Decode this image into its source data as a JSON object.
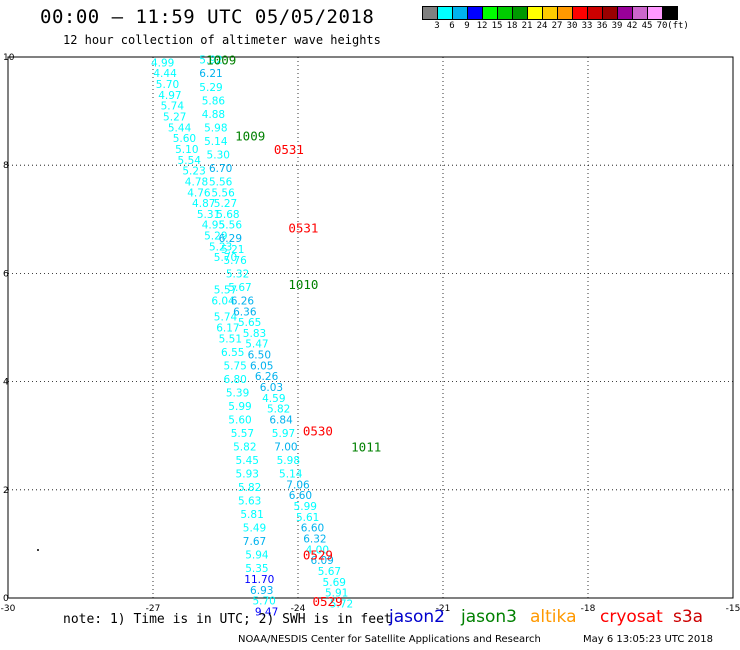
{
  "header": {
    "title": "00:00 – 11:59 UTC 05/05/2018",
    "subtitle": "12 hour collection of altimeter wave heights"
  },
  "colorbar": {
    "colors": [
      "#808080",
      "#00ffff",
      "#00b2ee",
      "#0000ff",
      "#00ff00",
      "#00cc00",
      "#009900",
      "#ffff00",
      "#ffcc00",
      "#ff9900",
      "#ff0000",
      "#cc0000",
      "#990000",
      "#990099",
      "#cc66cc",
      "#ff99ff",
      "#000000"
    ],
    "labels": [
      "3",
      "6",
      "9",
      "12",
      "15",
      "18",
      "21",
      "24",
      "27",
      "30",
      "33",
      "36",
      "39",
      "42",
      "45",
      "70"
    ],
    "unit": "(ft)"
  },
  "chart_data": {
    "type": "scatter",
    "title": "00:00 – 11:59 UTC 05/05/2018",
    "subtitle": "12 hour collection of altimeter wave heights",
    "xlim": [
      -30,
      -15
    ],
    "ylim": [
      0,
      10
    ],
    "x_ticks": [
      "-30",
      "-27",
      "-24",
      "-21",
      "-18",
      "-15"
    ],
    "y_ticks": [
      "0",
      "2",
      "4",
      "6",
      "8",
      "10"
    ],
    "grid": "dotted",
    "value_unit": "ft",
    "pass_labels": [
      {
        "text": "1009",
        "x": -25.9,
        "y": 9.95,
        "color": "#008000"
      },
      {
        "text": "1009",
        "x": -25.3,
        "y": 8.55,
        "color": "#008000"
      },
      {
        "text": "0531",
        "x": -24.5,
        "y": 8.3,
        "color": "#ff0000"
      },
      {
        "text": "0531",
        "x": -24.2,
        "y": 6.85,
        "color": "#ff0000"
      },
      {
        "text": "1010",
        "x": -24.2,
        "y": 5.8,
        "color": "#008000"
      },
      {
        "text": "0530",
        "x": -23.9,
        "y": 3.1,
        "color": "#ff0000"
      },
      {
        "text": "1011",
        "x": -22.9,
        "y": 2.8,
        "color": "#008000"
      },
      {
        "text": "0529",
        "x": -23.9,
        "y": 0.8,
        "color": "#ff0000"
      },
      {
        "text": "0529",
        "x": -23.7,
        "y": -0.06,
        "color": "#ff0000"
      }
    ],
    "series": [
      {
        "points": [
          {
            "x": -26.8,
            "y": 9.9,
            "v": "4.99",
            "c": "#00ffff"
          },
          {
            "x": -26.75,
            "y": 9.7,
            "v": "4.44",
            "c": "#00ffff"
          },
          {
            "x": -26.7,
            "y": 9.5,
            "v": "5.70",
            "c": "#00ffff"
          },
          {
            "x": -26.65,
            "y": 9.3,
            "v": "4.97",
            "c": "#00ffff"
          },
          {
            "x": -26.6,
            "y": 9.1,
            "v": "5.74",
            "c": "#00ffff"
          },
          {
            "x": -26.55,
            "y": 8.9,
            "v": "5.27",
            "c": "#00ffff"
          },
          {
            "x": -26.45,
            "y": 8.7,
            "v": "5.44",
            "c": "#00ffff"
          },
          {
            "x": -26.35,
            "y": 8.5,
            "v": "5.60",
            "c": "#00ffff"
          },
          {
            "x": -26.3,
            "y": 8.3,
            "v": "5.10",
            "c": "#00ffff"
          },
          {
            "x": -26.25,
            "y": 8.1,
            "v": "5.54",
            "c": "#00ffff"
          },
          {
            "x": -26.15,
            "y": 7.9,
            "v": "5.23",
            "c": "#00ffff"
          },
          {
            "x": -26.1,
            "y": 7.7,
            "v": "4.78",
            "c": "#00ffff"
          },
          {
            "x": -26.05,
            "y": 7.5,
            "v": "4.76",
            "c": "#00ffff"
          },
          {
            "x": -25.95,
            "y": 7.3,
            "v": "4.87",
            "c": "#00ffff"
          },
          {
            "x": -25.85,
            "y": 7.1,
            "v": "5.31",
            "c": "#00ffff"
          },
          {
            "x": -25.75,
            "y": 6.9,
            "v": "4.95",
            "c": "#00ffff"
          },
          {
            "x": -25.7,
            "y": 6.7,
            "v": "5.29",
            "c": "#00ffff"
          },
          {
            "x": -25.6,
            "y": 6.5,
            "v": "5.23",
            "c": "#00ffff"
          },
          {
            "x": -25.5,
            "y": 6.3,
            "v": "5.70",
            "c": "#00ffff"
          },
          {
            "x": -25.5,
            "y": 5.7,
            "v": "5.57",
            "c": "#00ffff"
          },
          {
            "x": -25.55,
            "y": 5.5,
            "v": "6.04",
            "c": "#00ffff"
          },
          {
            "x": -25.5,
            "y": 5.2,
            "v": "5.74",
            "c": "#00ffff"
          },
          {
            "x": -25.45,
            "y": 5.0,
            "v": "6.17",
            "c": "#00ffff"
          },
          {
            "x": -25.4,
            "y": 4.8,
            "v": "5.51",
            "c": "#00ffff"
          },
          {
            "x": -25.35,
            "y": 4.55,
            "v": "6.55",
            "c": "#00ffff"
          },
          {
            "x": -25.3,
            "y": 4.3,
            "v": "5.75",
            "c": "#00ffff"
          },
          {
            "x": -25.3,
            "y": 4.05,
            "v": "6.80",
            "c": "#00ffff"
          },
          {
            "x": -25.25,
            "y": 3.8,
            "v": "5.39",
            "c": "#00ffff"
          },
          {
            "x": -25.2,
            "y": 3.55,
            "v": "5.99",
            "c": "#00ffff"
          },
          {
            "x": -25.2,
            "y": 3.3,
            "v": "5.60",
            "c": "#00ffff"
          },
          {
            "x": -25.15,
            "y": 3.05,
            "v": "5.57",
            "c": "#00ffff"
          },
          {
            "x": -25.1,
            "y": 2.8,
            "v": "5.82",
            "c": "#00ffff"
          },
          {
            "x": -25.05,
            "y": 2.55,
            "v": "5.45",
            "c": "#00ffff"
          },
          {
            "x": -25.05,
            "y": 2.3,
            "v": "5.93",
            "c": "#00ffff"
          },
          {
            "x": -25.0,
            "y": 2.05,
            "v": "5.82",
            "c": "#00ffff"
          },
          {
            "x": -25.0,
            "y": 1.8,
            "v": "5.63",
            "c": "#00ffff"
          },
          {
            "x": -24.95,
            "y": 1.55,
            "v": "5.81",
            "c": "#00ffff"
          },
          {
            "x": -24.9,
            "y": 1.3,
            "v": "5.49",
            "c": "#00ffff"
          },
          {
            "x": -24.9,
            "y": 1.05,
            "v": "7.67",
            "c": "#00b2ee"
          },
          {
            "x": -24.85,
            "y": 0.8,
            "v": "5.94",
            "c": "#00ffff"
          },
          {
            "x": -24.85,
            "y": 0.55,
            "v": "5.35",
            "c": "#00ffff"
          },
          {
            "x": -24.8,
            "y": 0.35,
            "v": "11.70",
            "c": "#0000ff"
          },
          {
            "x": -24.75,
            "y": 0.15,
            "v": "6.93",
            "c": "#00b2ee"
          },
          {
            "x": -24.7,
            "y": -0.05,
            "v": "5.70",
            "c": "#00ffff"
          },
          {
            "x": -24.65,
            "y": -0.25,
            "v": "9.47",
            "c": "#0000ff"
          }
        ]
      },
      {
        "points": [
          {
            "x": -25.8,
            "y": 9.95,
            "v": "5.92",
            "c": "#00ffff"
          },
          {
            "x": -25.8,
            "y": 9.7,
            "v": "6.21",
            "c": "#00b2ee"
          },
          {
            "x": -25.8,
            "y": 9.45,
            "v": "5.29",
            "c": "#00ffff"
          },
          {
            "x": -25.75,
            "y": 9.2,
            "v": "5.86",
            "c": "#00ffff"
          },
          {
            "x": -25.75,
            "y": 8.95,
            "v": "4.88",
            "c": "#00ffff"
          },
          {
            "x": -25.7,
            "y": 8.7,
            "v": "5.98",
            "c": "#00ffff"
          },
          {
            "x": -25.7,
            "y": 8.45,
            "v": "5.14",
            "c": "#00ffff"
          },
          {
            "x": -25.65,
            "y": 8.2,
            "v": "5.30",
            "c": "#00ffff"
          },
          {
            "x": -25.6,
            "y": 7.95,
            "v": "6.70",
            "c": "#00b2ee"
          },
          {
            "x": -25.6,
            "y": 7.7,
            "v": "5.56",
            "c": "#00ffff"
          },
          {
            "x": -25.55,
            "y": 7.5,
            "v": "5.56",
            "c": "#00ffff"
          },
          {
            "x": -25.5,
            "y": 7.3,
            "v": "5.27",
            "c": "#00ffff"
          },
          {
            "x": -25.45,
            "y": 7.1,
            "v": "5.68",
            "c": "#00ffff"
          },
          {
            "x": -25.4,
            "y": 6.9,
            "v": "5.56",
            "c": "#00ffff"
          },
          {
            "x": -25.4,
            "y": 6.65,
            "v": "6.29",
            "c": "#00b2ee"
          },
          {
            "x": -25.35,
            "y": 6.45,
            "v": "5.21",
            "c": "#00ffff"
          },
          {
            "x": -25.3,
            "y": 6.25,
            "v": "5.76",
            "c": "#00ffff"
          },
          {
            "x": -25.25,
            "y": 6.0,
            "v": "5.32",
            "c": "#00ffff"
          },
          {
            "x": -25.2,
            "y": 5.75,
            "v": "5.67",
            "c": "#00ffff"
          },
          {
            "x": -25.15,
            "y": 5.5,
            "v": "6.26",
            "c": "#00b2ee"
          },
          {
            "x": -25.1,
            "y": 5.3,
            "v": "6.36",
            "c": "#00b2ee"
          },
          {
            "x": -25.0,
            "y": 5.1,
            "v": "5.65",
            "c": "#00ffff"
          },
          {
            "x": -24.9,
            "y": 4.9,
            "v": "5.83",
            "c": "#00ffff"
          },
          {
            "x": -24.85,
            "y": 4.7,
            "v": "5.47",
            "c": "#00ffff"
          },
          {
            "x": -24.8,
            "y": 4.5,
            "v": "6.50",
            "c": "#00b2ee"
          },
          {
            "x": -24.75,
            "y": 4.3,
            "v": "6.05",
            "c": "#00b2ee"
          },
          {
            "x": -24.65,
            "y": 4.1,
            "v": "6.26",
            "c": "#00b2ee"
          },
          {
            "x": -24.55,
            "y": 3.9,
            "v": "6.03",
            "c": "#00b2ee"
          },
          {
            "x": -24.5,
            "y": 3.7,
            "v": "4.59",
            "c": "#00ffff"
          },
          {
            "x": -24.4,
            "y": 3.5,
            "v": "5.82",
            "c": "#00ffff"
          },
          {
            "x": -24.35,
            "y": 3.3,
            "v": "6.84",
            "c": "#00b2ee"
          },
          {
            "x": -24.3,
            "y": 3.05,
            "v": "5.97",
            "c": "#00ffff"
          },
          {
            "x": -24.25,
            "y": 2.8,
            "v": "7.00",
            "c": "#00b2ee"
          },
          {
            "x": -24.2,
            "y": 2.55,
            "v": "5.98",
            "c": "#00ffff"
          },
          {
            "x": -24.15,
            "y": 2.3,
            "v": "5.14",
            "c": "#00ffff"
          },
          {
            "x": -24.0,
            "y": 2.1,
            "v": "7.06",
            "c": "#00b2ee"
          },
          {
            "x": -23.95,
            "y": 1.9,
            "v": "6.60",
            "c": "#00b2ee"
          },
          {
            "x": -23.85,
            "y": 1.7,
            "v": "5.99",
            "c": "#00ffff"
          },
          {
            "x": -23.8,
            "y": 1.5,
            "v": "5.61",
            "c": "#00ffff"
          },
          {
            "x": -23.7,
            "y": 1.3,
            "v": "6.60",
            "c": "#00b2ee"
          },
          {
            "x": -23.65,
            "y": 1.1,
            "v": "6.32",
            "c": "#00b2ee"
          },
          {
            "x": -23.6,
            "y": 0.9,
            "v": "4.00",
            "c": "#00ffff"
          },
          {
            "x": -23.5,
            "y": 0.7,
            "v": "6.09",
            "c": "#00b2ee"
          },
          {
            "x": -23.35,
            "y": 0.5,
            "v": "5.67",
            "c": "#00ffff"
          },
          {
            "x": -23.25,
            "y": 0.3,
            "v": "5.69",
            "c": "#00ffff"
          },
          {
            "x": -23.2,
            "y": 0.1,
            "v": "5.91",
            "c": "#00ffff"
          },
          {
            "x": -23.1,
            "y": -0.1,
            "v": "5.72",
            "c": "#00ffff"
          }
        ]
      }
    ]
  },
  "footer": {
    "note": "note: 1) Time is in UTC; 2) SWH is in feet",
    "satellites": [
      {
        "name": "jason2",
        "color": "#0000cc"
      },
      {
        "name": "jason3",
        "color": "#008000"
      },
      {
        "name": "altika",
        "color": "#ff9900"
      },
      {
        "name": "cryosat",
        "color": "#ff0000"
      },
      {
        "name": "s3a",
        "color": "#cc0000"
      }
    ],
    "credit": "NOAA/NESDIS Center for Satellite Applications and Research",
    "timestamp": "May  6 13:05:23 UTC 2018"
  }
}
